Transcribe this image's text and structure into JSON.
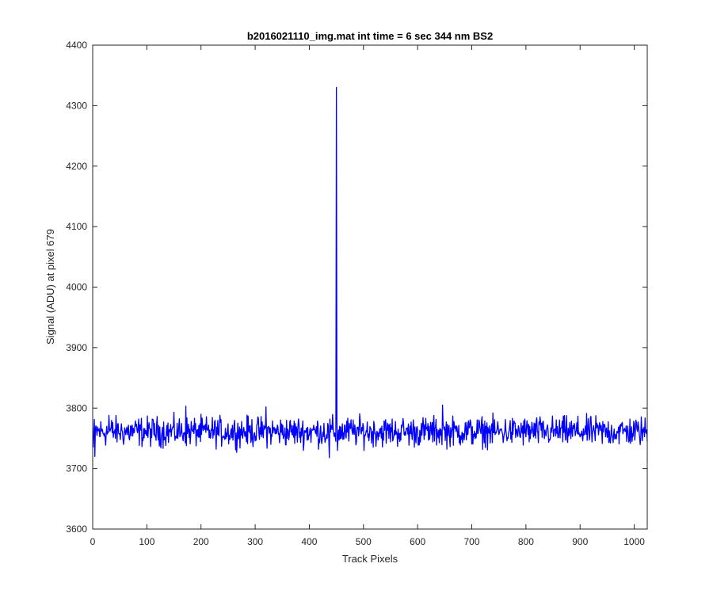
{
  "chart_data": {
    "type": "line",
    "title": "b2016021110_img.mat int time = 6 sec  344 nm BS2",
    "xlabel": "Track Pixels",
    "ylabel": "Signal (ADU) at pixel 679",
    "xlim": [
      0,
      1024
    ],
    "ylim": [
      3600,
      4400
    ],
    "xticks": [
      0,
      100,
      200,
      300,
      400,
      500,
      600,
      700,
      800,
      900,
      1000
    ],
    "yticks": [
      3600,
      3700,
      3800,
      3900,
      4000,
      4100,
      4200,
      4300,
      4400
    ],
    "grid": false,
    "series": [
      {
        "color": "#0000ff",
        "baseline_mean": 3761,
        "noise_amplitude": 12,
        "x_range": [
          1,
          1024
        ],
        "key_points": [
          {
            "x": 1,
            "y": 3735
          },
          {
            "x": 4,
            "y": 3720
          },
          {
            "x": 30,
            "y": 3788
          },
          {
            "x": 172,
            "y": 3803
          },
          {
            "x": 320,
            "y": 3802
          },
          {
            "x": 437,
            "y": 3718
          },
          {
            "x": 449,
            "y": 3745
          },
          {
            "x": 450,
            "y": 4330
          },
          {
            "x": 451,
            "y": 3780
          },
          {
            "x": 452,
            "y": 3730
          },
          {
            "x": 646,
            "y": 3805
          },
          {
            "x": 1024,
            "y": 3745
          }
        ]
      }
    ]
  },
  "colors": {
    "line": "#0000ff",
    "axes": "#262626",
    "background": "#ffffff"
  }
}
